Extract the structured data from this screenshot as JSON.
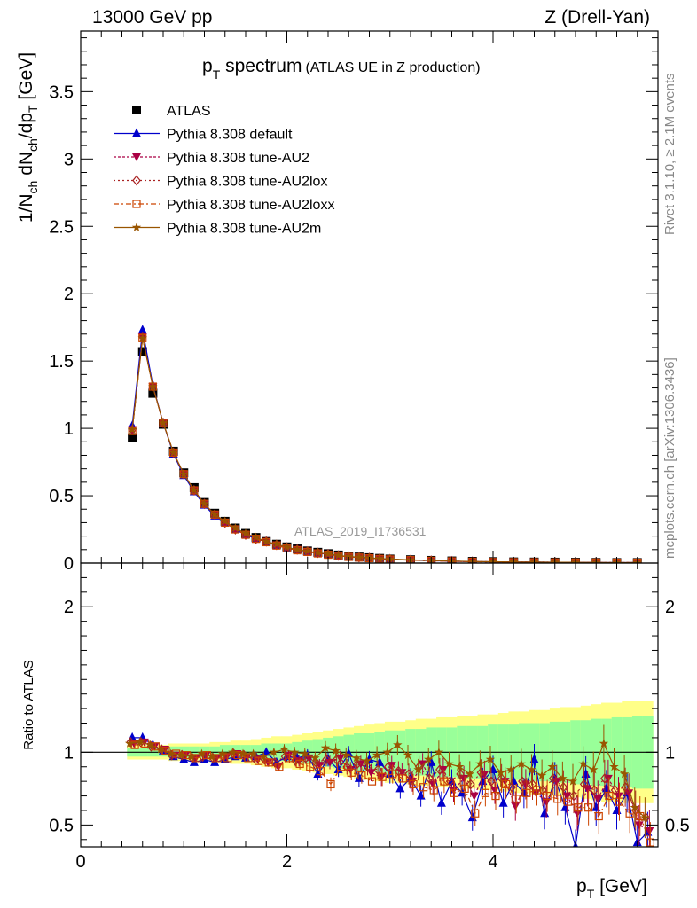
{
  "header": {
    "energy_label": "13000 GeV pp",
    "process_label": "Z (Drell-Yan)"
  },
  "side": {
    "rivet_label": "Rivet 3.1.10, ≥ 2.1M events",
    "mcplots_label": "mcplots.cern.ch [arXiv:1306.3436]"
  },
  "chart_data": [
    {
      "type": "scatter",
      "panel": "main",
      "title_main": "p",
      "title_sub": "T",
      "title_rest": " spectrum",
      "title_note": "(ATLAS UE in Z production)",
      "ylabel": "1/N_ch dN_ch/dp_T [GeV]",
      "watermark": "ATLAS_2019_I1736531",
      "xlim": [
        0,
        5.6
      ],
      "ylim": [
        0,
        3.95
      ],
      "yticks": [
        0,
        0.5,
        1,
        1.5,
        2,
        2.5,
        3,
        3.5
      ],
      "ytick_labels": [
        "0",
        "0.5",
        "1",
        "1.5",
        "2",
        "2.5",
        "3",
        "3.5"
      ],
      "x": [
        0.5,
        0.6,
        0.7,
        0.8,
        0.9,
        1.0,
        1.1,
        1.2,
        1.3,
        1.4,
        1.5,
        1.6,
        1.7,
        1.8,
        1.9,
        2.0,
        2.1,
        2.2,
        2.3,
        2.4,
        2.5,
        2.6,
        2.7,
        2.8,
        2.9,
        3.0,
        3.2,
        3.4,
        3.6,
        3.8,
        4.0,
        4.2,
        4.4,
        4.6,
        4.8,
        5.0,
        5.2,
        5.4
      ],
      "series": [
        {
          "name": "ATLAS",
          "style": "data",
          "color": "#000000",
          "values": [
            0.93,
            1.57,
            1.26,
            1.03,
            0.83,
            0.67,
            0.56,
            0.45,
            0.37,
            0.31,
            0.26,
            0.22,
            0.19,
            0.16,
            0.14,
            0.12,
            0.105,
            0.09,
            0.08,
            0.07,
            0.06,
            0.05,
            0.045,
            0.04,
            0.035,
            0.03,
            0.025,
            0.02,
            0.016,
            0.013,
            0.011,
            0.009,
            0.008,
            0.007,
            0.006,
            0.005,
            0.004,
            0.004
          ]
        },
        {
          "name": "Pythia 8.308 default",
          "color": "#0000cc",
          "dash": "",
          "marker": "triangle-up",
          "values": [
            1.02,
            1.73,
            1.32,
            1.04,
            0.81,
            0.65,
            0.53,
            0.43,
            0.35,
            0.3,
            0.25,
            0.21,
            0.18,
            0.16,
            0.13,
            0.115,
            0.1,
            0.085,
            0.075,
            0.065,
            0.055,
            0.047,
            0.042,
            0.037,
            0.032,
            0.028,
            0.022,
            0.018,
            0.014,
            0.011,
            0.009,
            0.008,
            0.007,
            0.006,
            0.005,
            0.004,
            0.003,
            0.003
          ]
        },
        {
          "name": "Pythia 8.308 tune-AU2",
          "color": "#aa0044",
          "dash": "3,2",
          "marker": "triangle-down",
          "values": [
            0.99,
            1.68,
            1.31,
            1.04,
            0.82,
            0.66,
            0.54,
            0.44,
            0.36,
            0.3,
            0.25,
            0.21,
            0.18,
            0.16,
            0.135,
            0.115,
            0.1,
            0.087,
            0.076,
            0.066,
            0.056,
            0.048,
            0.043,
            0.038,
            0.033,
            0.029,
            0.023,
            0.018,
            0.014,
            0.011,
            0.009,
            0.008,
            0.007,
            0.006,
            0.005,
            0.004,
            0.003,
            0.003
          ]
        },
        {
          "name": "Pythia 8.308 tune-AU2lox",
          "color": "#aa2222",
          "dash": "2,3",
          "marker": "diamond-open",
          "values": [
            0.99,
            1.68,
            1.31,
            1.04,
            0.82,
            0.66,
            0.54,
            0.44,
            0.36,
            0.3,
            0.25,
            0.21,
            0.18,
            0.16,
            0.135,
            0.115,
            0.1,
            0.087,
            0.076,
            0.066,
            0.056,
            0.048,
            0.043,
            0.038,
            0.033,
            0.029,
            0.023,
            0.018,
            0.014,
            0.011,
            0.009,
            0.008,
            0.007,
            0.006,
            0.005,
            0.004,
            0.003,
            0.003
          ]
        },
        {
          "name": "Pythia 8.308 tune-AU2loxx",
          "color": "#cc4400",
          "dash": "6,3,2,3",
          "marker": "square-open",
          "values": [
            0.98,
            1.67,
            1.31,
            1.04,
            0.82,
            0.66,
            0.54,
            0.44,
            0.36,
            0.3,
            0.25,
            0.21,
            0.18,
            0.155,
            0.13,
            0.11,
            0.095,
            0.083,
            0.072,
            0.062,
            0.053,
            0.046,
            0.041,
            0.036,
            0.031,
            0.027,
            0.022,
            0.017,
            0.013,
            0.01,
            0.008,
            0.007,
            0.006,
            0.005,
            0.004,
            0.004,
            0.003,
            0.003
          ]
        },
        {
          "name": "Pythia 8.308 tune-AU2m",
          "color": "#995500",
          "dash": "",
          "marker": "star",
          "values": [
            0.99,
            1.67,
            1.31,
            1.04,
            0.82,
            0.66,
            0.54,
            0.44,
            0.36,
            0.31,
            0.26,
            0.22,
            0.19,
            0.16,
            0.14,
            0.118,
            0.1,
            0.088,
            0.077,
            0.067,
            0.057,
            0.049,
            0.044,
            0.039,
            0.034,
            0.03,
            0.024,
            0.019,
            0.015,
            0.012,
            0.01,
            0.008,
            0.007,
            0.006,
            0.005,
            0.004,
            0.003,
            0.003
          ]
        }
      ]
    },
    {
      "type": "scatter",
      "panel": "ratio",
      "ylabel": "Ratio to ATLAS",
      "xlabel_main": "p",
      "xlabel_sub": "T",
      "xlabel_rest": " [GeV]",
      "xlim": [
        0,
        5.6
      ],
      "ylim": [
        0.35,
        2.3
      ],
      "xticks": [
        0,
        2,
        4
      ],
      "xtick_labels": [
        "0",
        "2",
        "4"
      ],
      "yticks": [
        0.5,
        1,
        2
      ],
      "ytick_labels": [
        "0.5",
        "1",
        "2"
      ],
      "band_colors": {
        "outer": "#ffff88",
        "inner": "#99ff99"
      },
      "x": [
        0.5,
        0.6,
        0.7,
        0.8,
        0.9,
        1.0,
        1.1,
        1.2,
        1.3,
        1.4,
        1.5,
        1.6,
        1.7,
        1.8,
        1.9,
        2.0,
        2.1,
        2.2,
        2.3,
        2.4,
        2.5,
        2.6,
        2.7,
        2.8,
        2.9,
        3.0,
        3.1,
        3.2,
        3.3,
        3.4,
        3.5,
        3.6,
        3.7,
        3.8,
        3.9,
        4.0,
        4.1,
        4.2,
        4.3,
        4.4,
        4.5,
        4.6,
        4.7,
        4.8,
        4.9,
        5.0,
        5.1,
        5.2,
        5.3,
        5.4,
        5.5
      ],
      "band_inner": [
        0.03,
        0.03,
        0.03,
        0.03,
        0.04,
        0.04,
        0.04,
        0.04,
        0.04,
        0.05,
        0.05,
        0.05,
        0.05,
        0.06,
        0.06,
        0.06,
        0.07,
        0.08,
        0.09,
        0.1,
        0.11,
        0.12,
        0.13,
        0.13,
        0.14,
        0.15,
        0.15,
        0.16,
        0.16,
        0.17,
        0.17,
        0.17,
        0.18,
        0.18,
        0.18,
        0.19,
        0.19,
        0.19,
        0.2,
        0.2,
        0.2,
        0.21,
        0.21,
        0.22,
        0.22,
        0.23,
        0.23,
        0.24,
        0.24,
        0.25,
        0.25
      ],
      "band_outer": [
        0.05,
        0.05,
        0.05,
        0.05,
        0.06,
        0.06,
        0.06,
        0.06,
        0.07,
        0.07,
        0.08,
        0.08,
        0.09,
        0.1,
        0.11,
        0.11,
        0.12,
        0.13,
        0.14,
        0.15,
        0.16,
        0.17,
        0.18,
        0.19,
        0.2,
        0.21,
        0.21,
        0.22,
        0.23,
        0.23,
        0.24,
        0.24,
        0.25,
        0.25,
        0.26,
        0.26,
        0.27,
        0.28,
        0.28,
        0.29,
        0.29,
        0.3,
        0.31,
        0.31,
        0.32,
        0.33,
        0.34,
        0.34,
        0.35,
        0.35,
        0.35
      ],
      "series": [
        {
          "name": "Pythia 8.308 default",
          "color": "#0000cc",
          "dash": "",
          "marker": "triangle-up",
          "values": [
            1.1,
            1.1,
            1.05,
            1.01,
            0.97,
            0.95,
            0.93,
            0.95,
            0.93,
            0.95,
            0.97,
            0.96,
            0.97,
            1.0,
            0.93,
            0.97,
            0.96,
            0.98,
            0.85,
            0.95,
            0.88,
            0.99,
            0.82,
            0.95,
            0.93,
            0.85,
            0.75,
            0.82,
            0.7,
            0.93,
            0.65,
            0.8,
            0.72,
            0.55,
            0.8,
            0.88,
            0.65,
            0.8,
            0.72,
            0.95,
            0.58,
            0.82,
            0.62,
            0.35,
            0.85,
            0.62,
            0.75,
            0.6,
            0.72,
            0.38,
            0.45
          ]
        },
        {
          "name": "Pythia 8.308 tune-AU2",
          "color": "#aa0044",
          "dash": "3,2",
          "marker": "triangle-down",
          "values": [
            1.06,
            1.07,
            1.04,
            1.02,
            0.98,
            0.98,
            0.96,
            0.98,
            0.96,
            0.97,
            0.99,
            0.97,
            0.95,
            0.93,
            0.9,
            0.98,
            0.94,
            0.96,
            0.91,
            0.93,
            0.96,
            0.88,
            0.92,
            0.86,
            0.83,
            0.91,
            0.86,
            0.8,
            0.92,
            0.78,
            0.88,
            0.74,
            0.82,
            0.7,
            0.85,
            0.74,
            0.8,
            0.63,
            0.78,
            0.72,
            0.66,
            0.8,
            0.7,
            0.58,
            0.75,
            0.68,
            0.82,
            0.7,
            0.72,
            0.5,
            0.46
          ]
        },
        {
          "name": "Pythia 8.308 tune-AU2lox",
          "color": "#aa2222",
          "dash": "2,3",
          "marker": "diamond-open",
          "values": [
            1.07,
            1.07,
            1.04,
            1.02,
            0.98,
            0.98,
            0.96,
            0.97,
            0.96,
            0.97,
            0.99,
            0.98,
            0.96,
            0.95,
            0.93,
            0.97,
            0.94,
            0.96,
            0.93,
            0.95,
            0.95,
            0.9,
            0.92,
            0.9,
            0.88,
            0.9,
            0.87,
            0.85,
            0.9,
            0.82,
            0.88,
            0.8,
            0.85,
            0.78,
            0.86,
            0.8,
            0.82,
            0.76,
            0.8,
            0.78,
            0.74,
            0.82,
            0.76,
            0.7,
            0.78,
            0.74,
            0.82,
            0.74,
            0.76,
            0.6,
            0.55
          ]
        },
        {
          "name": "Pythia 8.308 tune-AU2loxx",
          "color": "#cc4400",
          "dash": "6,3,2,3",
          "marker": "square-open",
          "values": [
            1.05,
            1.06,
            1.04,
            1.01,
            0.99,
            0.98,
            0.96,
            0.98,
            0.96,
            0.96,
            0.98,
            0.96,
            0.94,
            0.93,
            0.9,
            0.96,
            0.92,
            0.9,
            0.87,
            0.78,
            0.9,
            0.86,
            0.84,
            0.8,
            0.83,
            0.85,
            0.82,
            0.78,
            0.76,
            0.74,
            0.8,
            0.72,
            0.75,
            0.58,
            0.72,
            0.7,
            0.78,
            0.68,
            0.72,
            0.74,
            0.7,
            0.68,
            0.66,
            0.62,
            0.62,
            0.56,
            0.7,
            0.66,
            0.58,
            0.56,
            0.38
          ]
        },
        {
          "name": "Pythia 8.308 tune-AU2m",
          "color": "#995500",
          "dash": "",
          "marker": "star",
          "values": [
            1.06,
            1.07,
            1.05,
            1.02,
            0.99,
            0.98,
            0.97,
            0.99,
            0.97,
            0.99,
            1.0,
            0.99,
            0.99,
            0.97,
            1.0,
            1.02,
            1.0,
            0.99,
            0.96,
            1.03,
            1.01,
            0.98,
            0.96,
            0.94,
            0.98,
            1.0,
            1.05,
            0.98,
            0.88,
            0.95,
            1.0,
            0.92,
            0.9,
            0.85,
            0.92,
            0.95,
            0.86,
            0.88,
            0.92,
            0.88,
            0.84,
            0.9,
            0.82,
            0.8,
            0.92,
            0.88,
            1.06,
            0.9,
            0.85,
            0.62,
            0.55
          ]
        }
      ]
    }
  ]
}
